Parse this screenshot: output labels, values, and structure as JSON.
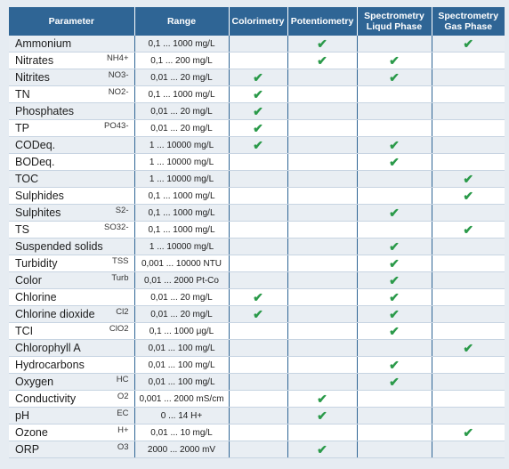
{
  "headers": {
    "parameter": "Parameter",
    "range": "Range",
    "colorimetry": "Colorimetry",
    "potentiometry": "Potentiometry",
    "spec_liquid": "Spectrometry Liqud Phase",
    "spec_gas": "Spectrometry Gas Phase"
  },
  "check_glyph": "✔",
  "check_color": "#2b9a4a",
  "header_color": "#2f6595",
  "rows": [
    {
      "name": "Ammonium",
      "chem": "",
      "range": "0,1 ... 1000 mg/L",
      "col": false,
      "pot": true,
      "liq": false,
      "gas": true
    },
    {
      "name": "Nitrates",
      "chem": "NH4+",
      "range": "0,1 ... 200 mg/L",
      "col": false,
      "pot": true,
      "liq": true,
      "gas": false
    },
    {
      "name": "Nitrites",
      "chem": "NO3-",
      "range": "0,01 ... 20 mg/L",
      "col": true,
      "pot": false,
      "liq": true,
      "gas": false
    },
    {
      "name": "TN",
      "chem": "NO2-",
      "range": "0,1 ... 1000 mg/L",
      "col": true,
      "pot": false,
      "liq": false,
      "gas": false
    },
    {
      "name": "Phosphates",
      "chem": "",
      "range": "0,01 ... 20 mg/L",
      "col": true,
      "pot": false,
      "liq": false,
      "gas": false
    },
    {
      "name": "TP",
      "chem": "PO43-",
      "range": "0,01 ... 20 mg/L",
      "col": true,
      "pot": false,
      "liq": false,
      "gas": false
    },
    {
      "name": "CODeq.",
      "chem": "",
      "range": "1 ... 10000 mg/L",
      "col": true,
      "pot": false,
      "liq": true,
      "gas": false
    },
    {
      "name": "BODeq.",
      "chem": "",
      "range": "1 ... 10000 mg/L",
      "col": false,
      "pot": false,
      "liq": true,
      "gas": false
    },
    {
      "name": "TOC",
      "chem": "",
      "range": "1 ... 10000 mg/L",
      "col": false,
      "pot": false,
      "liq": false,
      "gas": true
    },
    {
      "name": "Sulphides",
      "chem": "",
      "range": "0,1 ... 1000 mg/L",
      "col": false,
      "pot": false,
      "liq": false,
      "gas": true
    },
    {
      "name": "Sulphites",
      "chem": "S2-",
      "range": "0,1 ... 1000 mg/L",
      "col": false,
      "pot": false,
      "liq": true,
      "gas": false
    },
    {
      "name": "TS",
      "chem": "SO32-",
      "range": "0,1 ... 1000 mg/L",
      "col": false,
      "pot": false,
      "liq": false,
      "gas": true
    },
    {
      "name": "Suspended solids",
      "chem": "",
      "range": "1 ... 10000 mg/L",
      "col": false,
      "pot": false,
      "liq": true,
      "gas": false
    },
    {
      "name": "Turbidity",
      "chem": "TSS",
      "range": "0,001 ... 10000 NTU",
      "col": false,
      "pot": false,
      "liq": true,
      "gas": false
    },
    {
      "name": "Color",
      "chem": "Turb",
      "range": "0,01 ... 2000 Pt-Co",
      "col": false,
      "pot": false,
      "liq": true,
      "gas": false
    },
    {
      "name": "Chlorine",
      "chem": "",
      "range": "0,01 ... 20 mg/L",
      "col": true,
      "pot": false,
      "liq": true,
      "gas": false
    },
    {
      "name": "Chlorine dioxide",
      "chem": "Cl2",
      "range": "0,01 ... 20 mg/L",
      "col": true,
      "pot": false,
      "liq": true,
      "gas": false
    },
    {
      "name": "TCI",
      "chem": "ClO2",
      "range": "0,1 ... 1000 μg/L",
      "col": false,
      "pot": false,
      "liq": true,
      "gas": false
    },
    {
      "name": "Chlorophyll A",
      "chem": "",
      "range": "0,01 ... 100 mg/L",
      "col": false,
      "pot": false,
      "liq": false,
      "gas": true
    },
    {
      "name": "Hydrocarbons",
      "chem": "",
      "range": "0,01 ... 100 mg/L",
      "col": false,
      "pot": false,
      "liq": true,
      "gas": false
    },
    {
      "name": "Oxygen",
      "chem": "HC",
      "range": "0,01 ... 100 mg/L",
      "col": false,
      "pot": false,
      "liq": true,
      "gas": false
    },
    {
      "name": "Conductivity",
      "chem": "O2",
      "range": "0,001 ... 2000 mS/cm",
      "col": false,
      "pot": true,
      "liq": false,
      "gas": false
    },
    {
      "name": "pH",
      "chem": "EC",
      "range": "0 ... 14 H+",
      "col": false,
      "pot": true,
      "liq": false,
      "gas": false
    },
    {
      "name": "Ozone",
      "chem": "H+",
      "range": "0,01 ... 10 mg/L",
      "col": false,
      "pot": false,
      "liq": false,
      "gas": true
    },
    {
      "name": "ORP",
      "chem": "O3",
      "range": "2000 ... 2000 mV",
      "col": false,
      "pot": true,
      "liq": false,
      "gas": false
    }
  ]
}
